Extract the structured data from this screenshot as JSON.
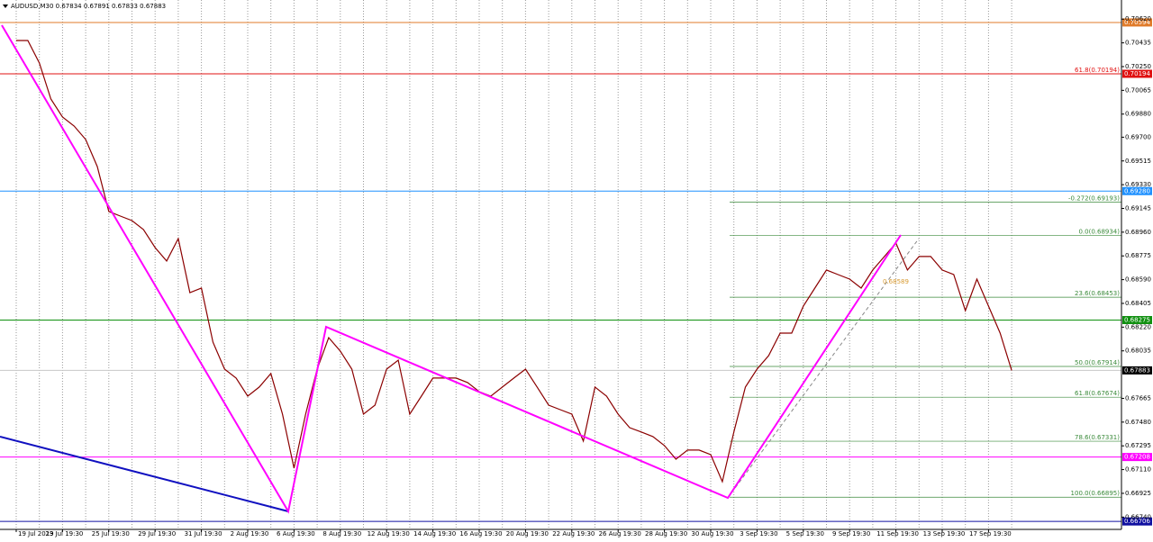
{
  "chart_data": {
    "type": "line",
    "title": "AUDUSD,M30  0.67834 0.67891 0.67833 0.67883",
    "categories": [
      "19 Jul 2019",
      null,
      null,
      null,
      "23 Jul 19:30",
      null,
      null,
      null,
      "25 Jul 19:30",
      null,
      null,
      null,
      "29 Jul 19:30",
      null,
      null,
      null,
      "31 Jul 19:30",
      null,
      null,
      null,
      "2 Aug 19:30",
      null,
      null,
      null,
      "6 Aug 19:30",
      null,
      null,
      null,
      "8 Aug 19:30",
      null,
      null,
      null,
      "12 Aug 19:30",
      null,
      null,
      null,
      "14 Aug 19:30",
      null,
      null,
      null,
      "16 Aug 19:30",
      null,
      null,
      null,
      "20 Aug 19:30",
      null,
      null,
      null,
      "22 Aug 19:30",
      null,
      null,
      null,
      "26 Aug 19:30",
      null,
      null,
      null,
      "28 Aug 19:30",
      null,
      null,
      null,
      "30 Aug 19:30",
      null,
      null,
      null,
      "3 Sep 19:30",
      null,
      null,
      null,
      "5 Sep 19:30",
      null,
      null,
      null,
      "9 Sep 19:30",
      null,
      null,
      null,
      "11 Sep 19:30",
      null,
      null,
      null,
      "13 Sep 19:30",
      null,
      null,
      null,
      "17 Sep 19:30",
      null,
      null
    ],
    "values": [
      0.70453,
      0.70453,
      0.70278,
      0.69997,
      0.69857,
      0.69787,
      0.69682,
      0.69471,
      0.69121,
      0.69085,
      0.6905,
      0.6898,
      0.6884,
      0.68735,
      0.6891,
      0.68489,
      0.68524,
      0.68103,
      0.67893,
      0.67823,
      0.67682,
      0.67753,
      0.67858,
      0.67542,
      0.67121,
      0.67542,
      0.67893,
      0.68138,
      0.68033,
      0.67893,
      0.67542,
      0.67612,
      0.67893,
      0.67963,
      0.67542,
      0.67682,
      0.67823,
      0.67823,
      0.67823,
      0.67788,
      0.67717,
      0.67682,
      0.67753,
      0.67823,
      0.67893,
      0.67753,
      0.67612,
      0.67577,
      0.67542,
      0.67332,
      0.67753,
      0.67682,
      0.67542,
      0.67437,
      0.67403,
      0.67367,
      0.67297,
      0.67191,
      0.67262,
      0.67262,
      0.67226,
      0.67016,
      0.67403,
      0.67753,
      0.67893,
      0.67998,
      0.68173,
      0.68173,
      0.68384,
      0.68524,
      0.68665,
      0.68629,
      0.68594,
      0.68524,
      0.68665,
      0.6877,
      0.68875,
      0.68665,
      0.6877,
      0.6877,
      0.68665,
      0.68629,
      0.68349,
      0.68594,
      0.68384,
      0.68173,
      0.67883
    ],
    "color": "#8b0000",
    "ylim": [
      0.66644,
      0.70769
    ],
    "yticks": [
      {
        "value": 0.7062,
        "label": "0.70620"
      },
      0.70435,
      {
        "value": 0.7025,
        "label": "0.70250"
      },
      0.70065,
      {
        "value": 0.6988,
        "label": "0.69880"
      },
      {
        "value": 0.697,
        "label": "0.69700"
      },
      0.69515,
      {
        "value": 0.6933,
        "label": "0.69330"
      },
      0.69145,
      {
        "value": 0.6896,
        "label": "0.68960"
      },
      0.68775,
      {
        "value": 0.6859,
        "label": "0.68590"
      },
      0.68405,
      {
        "value": 0.6822,
        "label": "0.68220"
      },
      0.68035,
      0.67665,
      {
        "value": 0.6748,
        "label": "0.67480"
      },
      0.67295,
      {
        "value": 0.6711,
        "label": "0.67110"
      },
      0.66925,
      {
        "value": 0.6674,
        "label": "0.66740"
      }
    ],
    "grid": true,
    "levels": [
      {
        "value": 0.70594,
        "label": "0.70594",
        "color": "#e07b2a"
      },
      {
        "value": 0.70194,
        "label": "0.70194",
        "color": "#e01010",
        "note": "61.8(0.70194)"
      },
      {
        "value": 0.6928,
        "label": "0.69280",
        "color": "#1e90ff"
      },
      {
        "value": 0.68275,
        "label": "0.68275",
        "color": "#109010"
      },
      {
        "value": 0.67883,
        "label": "0.67883",
        "color": "#c8c8c8"
      },
      {
        "value": 0.67208,
        "label": "0.67208",
        "color": "#ff00ff"
      },
      {
        "value": 0.66706,
        "label": "0.66706",
        "color": "#1010a0"
      }
    ],
    "fibo": {
      "color": "#3a8a3a",
      "levels": [
        {
          "value": 0.69193,
          "label": "-0.272(0.69193)"
        },
        {
          "value": 0.68934,
          "label": "0.0(0.68934)"
        },
        {
          "value": 0.68453,
          "label": "23.6(0.68453)"
        },
        {
          "value": 0.67914,
          "label": "50.0(0.67914)"
        },
        {
          "value": 0.67674,
          "label": "61.8(0.67674)"
        },
        {
          "value": 0.67331,
          "label": "78.6(0.67331)"
        },
        {
          "value": 0.66895,
          "label": "100.0(0.66895)"
        }
      ]
    },
    "annotation": "0.68589"
  }
}
